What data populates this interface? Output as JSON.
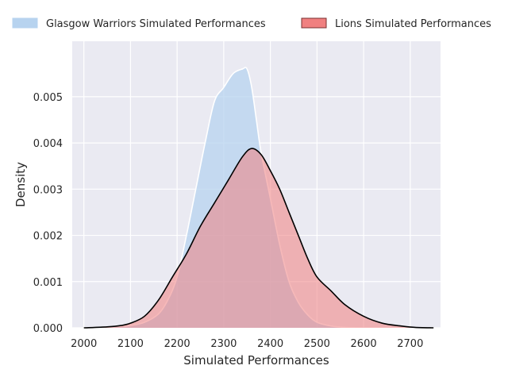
{
  "chart_data": {
    "type": "area",
    "xlabel": "Simulated Performances",
    "ylabel": "Density",
    "xlim": [
      1975,
      2765
    ],
    "ylim": [
      0,
      0.0062
    ],
    "x_ticks": [
      2000,
      2100,
      2200,
      2300,
      2400,
      2500,
      2600,
      2700
    ],
    "y_ticks": [
      0.0,
      0.001,
      0.002,
      0.003,
      0.004,
      0.005
    ],
    "y_tick_labels": [
      "0.000",
      "0.001",
      "0.002",
      "0.003",
      "0.004",
      "0.005"
    ],
    "x_tick_labels": [
      "2000",
      "2100",
      "2200",
      "2300",
      "2400",
      "2500",
      "2600",
      "2700"
    ],
    "grid": true,
    "legend_position": "top",
    "series": [
      {
        "name": "Glasgow Warriors Simulated Performances",
        "fill": "#b7d3ef",
        "line": "#ffffff",
        "x": [
          2020,
          2050,
          2080,
          2100,
          2130,
          2160,
          2180,
          2200,
          2220,
          2240,
          2260,
          2280,
          2300,
          2320,
          2340,
          2350,
          2360,
          2370,
          2380,
          2400,
          2420,
          2440,
          2460,
          2480,
          2500,
          2530,
          2560,
          2600,
          2640
        ],
        "y": [
          0.0,
          1e-05,
          3e-05,
          5e-05,
          0.00012,
          0.0003,
          0.0006,
          0.0011,
          0.002,
          0.003,
          0.004,
          0.0049,
          0.0052,
          0.0055,
          0.0056,
          0.0056,
          0.0052,
          0.0045,
          0.0038,
          0.0028,
          0.0018,
          0.001,
          0.00055,
          0.00028,
          0.00012,
          4e-05,
          1e-05,
          0.0,
          0.0
        ]
      },
      {
        "name": "Lions Simulated Performances",
        "fill": "#f08080",
        "line": "#000000",
        "x": [
          2000,
          2050,
          2080,
          2100,
          2130,
          2160,
          2190,
          2220,
          2250,
          2280,
          2310,
          2340,
          2360,
          2380,
          2400,
          2420,
          2440,
          2460,
          2480,
          2500,
          2530,
          2560,
          2600,
          2640,
          2680,
          2710,
          2750
        ],
        "y": [
          0.0,
          2e-05,
          5e-05,
          0.0001,
          0.00025,
          0.0006,
          0.0011,
          0.0016,
          0.0022,
          0.0027,
          0.0032,
          0.0037,
          0.00388,
          0.00375,
          0.0034,
          0.003,
          0.0025,
          0.002,
          0.0015,
          0.0011,
          0.0008,
          0.0005,
          0.00025,
          0.0001,
          4e-05,
          1e-05,
          0.0
        ]
      }
    ]
  }
}
